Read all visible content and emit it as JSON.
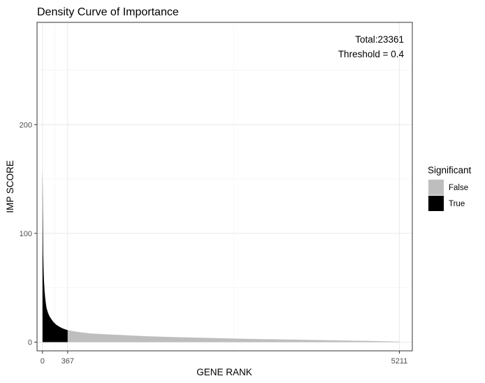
{
  "chart_data": {
    "type": "area",
    "title": "Density Curve of Importance",
    "xlabel": "GENE RANK",
    "ylabel": "IMP SCORE",
    "xlim": [
      -80,
      5400
    ],
    "ylim": [
      -8,
      294
    ],
    "x_ticks": [
      0,
      367,
      5211
    ],
    "y_ticks": [
      0,
      100,
      200
    ],
    "grid": true,
    "annotations": [
      "Total:23361",
      "Threshold = 0.4"
    ],
    "legend": {
      "title": "Significant",
      "position": "right",
      "entries": [
        {
          "label": "False",
          "color": "#bebebe"
        },
        {
          "label": "True",
          "color": "#000000"
        }
      ]
    },
    "series": [
      {
        "name": "True",
        "color": "#000000",
        "x": [
          0,
          2,
          5,
          10,
          15,
          20,
          30,
          40,
          50,
          60,
          80,
          100,
          130,
          160,
          200,
          250,
          300,
          367
        ],
        "y": [
          158,
          145,
          118,
          82,
          68,
          58,
          47,
          40,
          35,
          31,
          27,
          24,
          21,
          18.5,
          16,
          14,
          12.5,
          11
        ]
      },
      {
        "name": "False",
        "color": "#bebebe",
        "x": [
          367,
          500,
          700,
          1000,
          1500,
          2000,
          3000,
          4000,
          4700,
          5211
        ],
        "y": [
          11,
          9.5,
          8,
          7,
          5.5,
          4.5,
          3,
          2,
          1.2,
          0.5
        ]
      }
    ]
  }
}
